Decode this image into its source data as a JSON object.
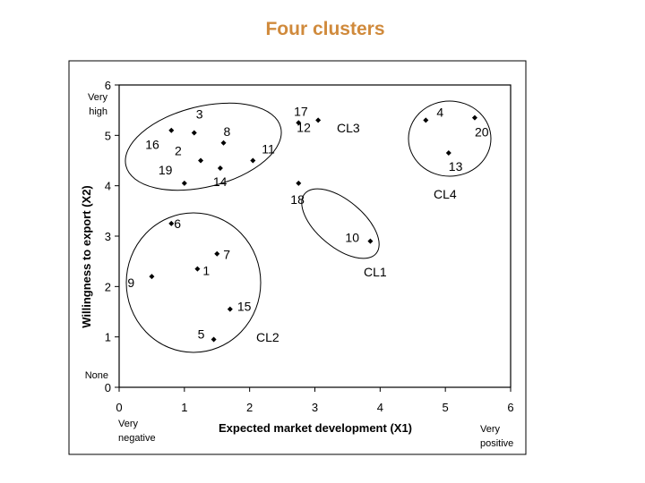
{
  "title": "Four clusters",
  "chart_data": {
    "type": "scatter",
    "title": "Four clusters",
    "xlabel": "Expected market development (X1)",
    "ylabel": "Willingness to export (X2)",
    "xlim": [
      0,
      6
    ],
    "ylim": [
      0,
      6
    ],
    "xticks": [
      "0",
      "1",
      "2",
      "3",
      "4",
      "5",
      "6"
    ],
    "yticks": [
      "0",
      "1",
      "2",
      "3",
      "4",
      "5",
      "6"
    ],
    "x_end_labels": {
      "low": "Very negative",
      "high": "Very positive"
    },
    "y_end_labels": {
      "low": "None",
      "high": "Very high"
    },
    "grid": false,
    "points": [
      {
        "label": "1",
        "x": 1.2,
        "y": 2.35
      },
      {
        "label": "2",
        "x": 1.25,
        "y": 4.5
      },
      {
        "label": "3",
        "x": 1.15,
        "y": 5.05
      },
      {
        "label": "4",
        "x": 4.7,
        "y": 5.3
      },
      {
        "label": "5",
        "x": 1.45,
        "y": 0.95
      },
      {
        "label": "6",
        "x": 0.8,
        "y": 3.25
      },
      {
        "label": "7",
        "x": 1.5,
        "y": 2.65
      },
      {
        "label": "8",
        "x": 1.6,
        "y": 4.85
      },
      {
        "label": "9",
        "x": 0.5,
        "y": 2.2
      },
      {
        "label": "10",
        "x": 3.85,
        "y": 2.9
      },
      {
        "label": "11",
        "x": 2.05,
        "y": 4.5
      },
      {
        "label": "12",
        "x": 2.75,
        "y": 5.25
      },
      {
        "label": "13",
        "x": 5.05,
        "y": 4.65
      },
      {
        "label": "14",
        "x": 1.55,
        "y": 4.35
      },
      {
        "label": "15",
        "x": 1.7,
        "y": 1.55
      },
      {
        "label": "16",
        "x": 0.8,
        "y": 5.1
      },
      {
        "label": "17",
        "x": 3.05,
        "y": 5.3
      },
      {
        "label": "18",
        "x": 2.75,
        "y": 4.05
      },
      {
        "label": "19",
        "x": 1.0,
        "y": 4.05
      },
      {
        "label": "20",
        "x": 5.45,
        "y": 5.35
      }
    ],
    "clusters": [
      {
        "name": "CL1",
        "members": [
          "10",
          "18"
        ]
      },
      {
        "name": "CL2",
        "members": [
          "1",
          "5",
          "6",
          "7",
          "9",
          "15"
        ]
      },
      {
        "name": "CL3",
        "members": [
          "2",
          "3",
          "8",
          "11",
          "12",
          "14",
          "16",
          "17",
          "19"
        ]
      },
      {
        "name": "CL4",
        "members": [
          "4",
          "13",
          "20"
        ]
      }
    ]
  }
}
